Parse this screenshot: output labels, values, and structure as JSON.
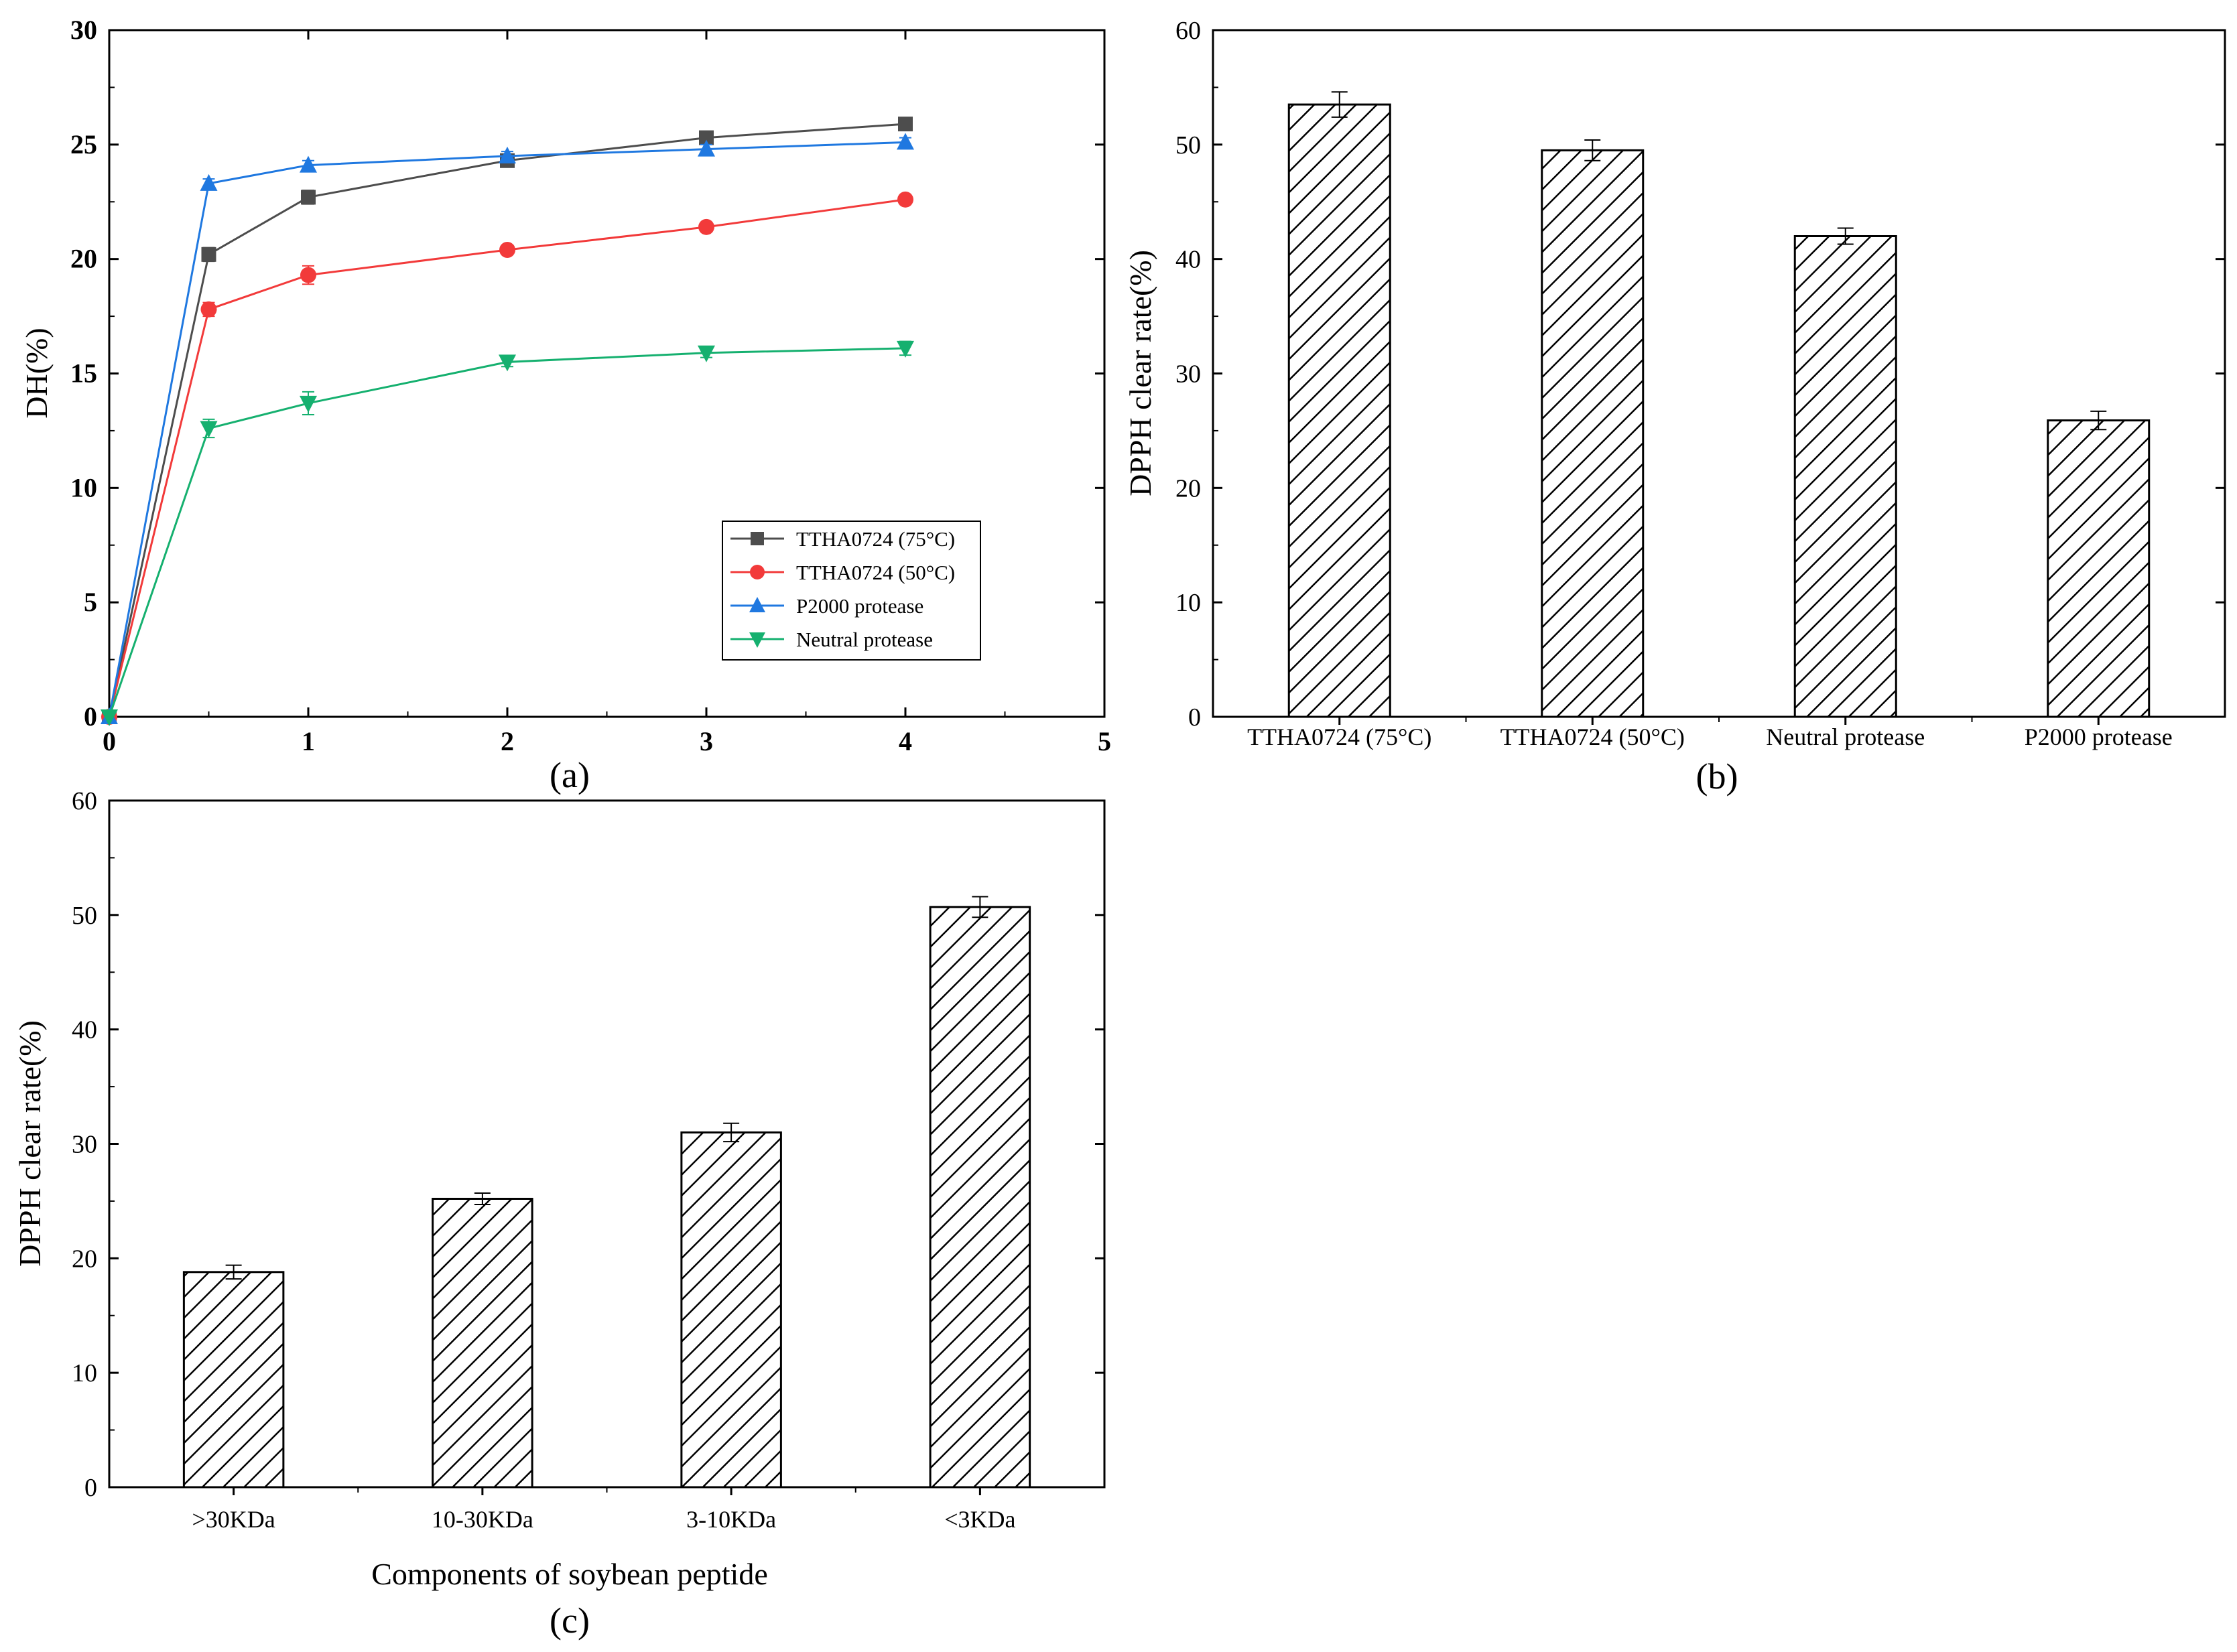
{
  "chart_data": [
    {
      "panel": "(a)",
      "type": "line",
      "xlabel": "",
      "ylabel": "DH(%)",
      "xlim": [
        0,
        5
      ],
      "ylim": [
        0,
        30
      ],
      "x_ticks": [
        "0",
        "1",
        "2",
        "3",
        "4",
        "5"
      ],
      "y_ticks": [
        "0",
        "5",
        "10",
        "15",
        "20",
        "25",
        "30"
      ],
      "legend_position": "bottom-right",
      "grid": false,
      "series": [
        {
          "name": "TTHA0724 (75°C)",
          "color": "#4d4d4d",
          "marker": "square",
          "x": [
            0,
            0.5,
            1,
            2,
            3,
            4
          ],
          "y": [
            0,
            20.2,
            22.7,
            24.3,
            25.3,
            25.9
          ],
          "err": [
            0,
            0.3,
            0.3,
            0.2,
            0.2,
            0.2
          ]
        },
        {
          "name": "TTHA0724 (50°C)",
          "color": "#f23a3a",
          "marker": "circle",
          "x": [
            0,
            0.5,
            1,
            2,
            3,
            4
          ],
          "y": [
            0,
            17.8,
            19.3,
            20.4,
            21.4,
            22.6
          ],
          "err": [
            0,
            0.3,
            0.4,
            0.2,
            0.2,
            0.2
          ]
        },
        {
          "name": "P2000 protease",
          "color": "#1f78e0",
          "marker": "triangle-up",
          "x": [
            0,
            0.5,
            1,
            2,
            3,
            4
          ],
          "y": [
            0,
            23.3,
            24.1,
            24.5,
            24.8,
            25.1
          ],
          "err": [
            0,
            0.2,
            0.2,
            0.2,
            0.2,
            0.2
          ]
        },
        {
          "name": "Neutral protease",
          "color": "#15b06f",
          "marker": "triangle-down",
          "x": [
            0,
            0.5,
            1,
            2,
            3,
            4
          ],
          "y": [
            0,
            12.6,
            13.7,
            15.5,
            15.9,
            16.1
          ],
          "err": [
            0,
            0.4,
            0.5,
            0.2,
            0.2,
            0.3
          ]
        }
      ]
    },
    {
      "panel": "(b)",
      "type": "bar",
      "xlabel": "",
      "ylabel": "DPPH clear rate(%)",
      "ylim": [
        0,
        60
      ],
      "y_ticks": [
        "0",
        "10",
        "20",
        "30",
        "40",
        "50",
        "60"
      ],
      "pattern": "diagonal-hatch",
      "categories": [
        "TTHA0724 (75°C)",
        "TTHA0724 (50°C)",
        "Neutral protease",
        "P2000 protease"
      ],
      "values": [
        53.5,
        49.5,
        42.0,
        25.9
      ],
      "errors": [
        1.1,
        0.9,
        0.7,
        0.8
      ]
    },
    {
      "panel": "(c)",
      "type": "bar",
      "xlabel": "Components of soybean peptide",
      "ylabel": "DPPH clear rate(%)",
      "ylim": [
        0,
        60
      ],
      "y_ticks": [
        "0",
        "10",
        "20",
        "30",
        "40",
        "50",
        "60"
      ],
      "pattern": "diagonal-hatch",
      "categories": [
        ">30KDa",
        "10-30KDa",
        "3-10KDa",
        "<3KDa"
      ],
      "values": [
        18.8,
        25.2,
        31.0,
        50.7
      ],
      "errors": [
        0.6,
        0.5,
        0.8,
        0.9
      ]
    }
  ]
}
